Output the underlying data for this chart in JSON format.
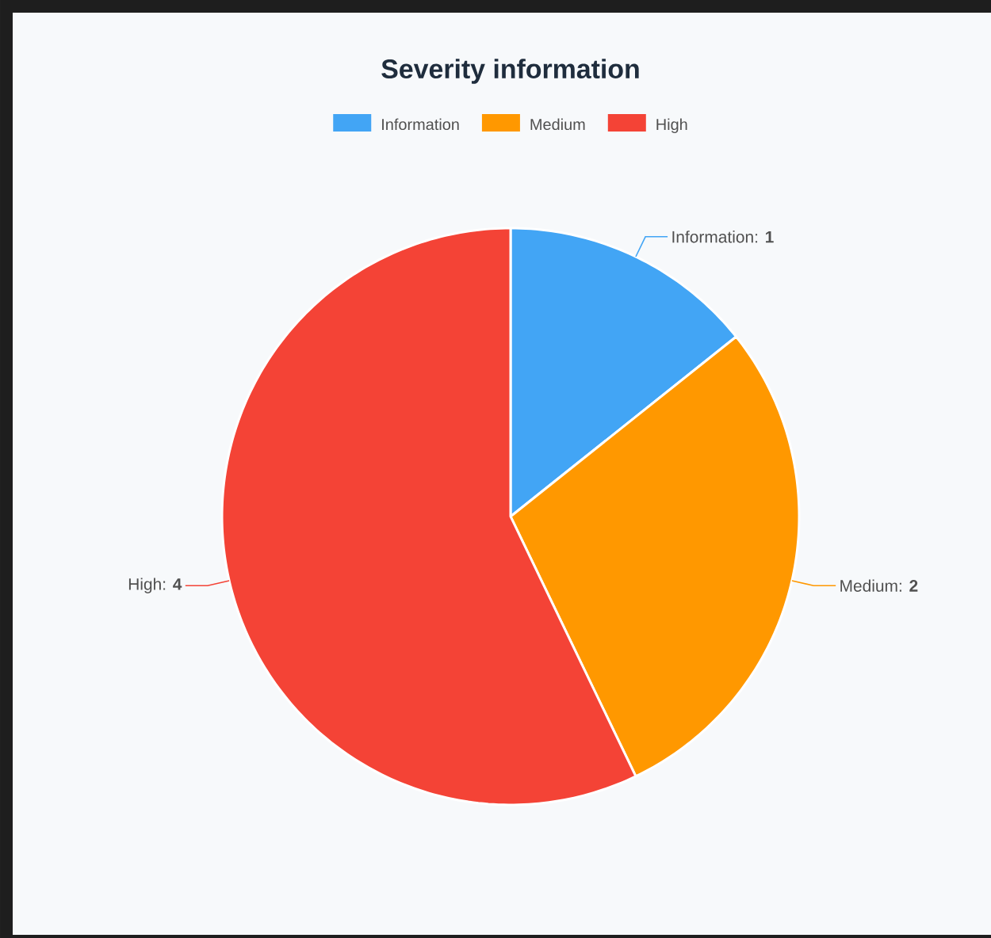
{
  "chart_data": {
    "type": "pie",
    "title": "Severity information",
    "categories": [
      "Information",
      "Medium",
      "High"
    ],
    "values": [
      1,
      2,
      4
    ],
    "colors": [
      "#42a5f5",
      "#ff9800",
      "#f44336"
    ],
    "value_labels": [
      "Information: **1**",
      "Medium: **2**",
      "High: **4**"
    ],
    "legend": "top"
  }
}
